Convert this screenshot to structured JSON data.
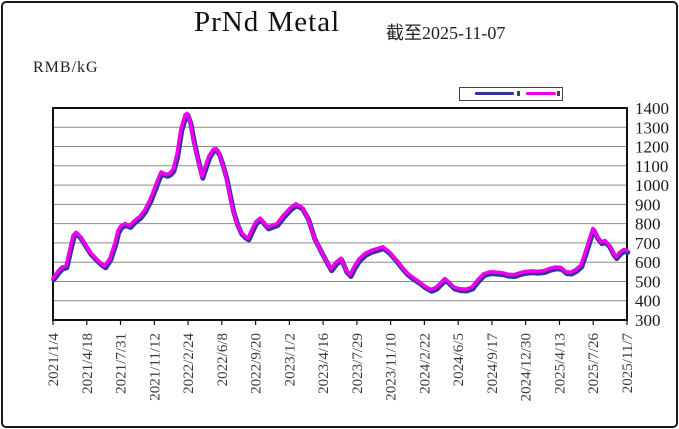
{
  "window": {
    "background": "#ffffff",
    "border_color": "#1a1a1a"
  },
  "legend": {
    "entries": [
      {
        "name": "series-1",
        "swatch_color": "#333399",
        "label": ""
      },
      {
        "name": "series-2",
        "swatch_color": "#ee00ee",
        "label": ""
      }
    ],
    "labels_visible": false
  },
  "chart_data": {
    "type": "line",
    "title": "PrNd Metal",
    "as_of": "截至2025-11-07",
    "ylabel": "RMB/kG",
    "ylim": [
      300,
      1400
    ],
    "yticks": [
      1400,
      1300,
      1200,
      1100,
      1000,
      900,
      800,
      700,
      600,
      500,
      400,
      300
    ],
    "xtick_labels": [
      "2021/1/4",
      "2021/4/18",
      "2021/7/31",
      "2021/11/12",
      "2022/2/24",
      "2022/6/8",
      "2022/9/20",
      "2023/1/2",
      "2023/4/16",
      "2023/7/29",
      "2023/11/10",
      "2024/2/22",
      "2024/6/5",
      "2024/9/17",
      "2024/12/30",
      "2025/4/13",
      "2025/7/26",
      "2025/11/7"
    ],
    "x_range": [
      "2021-01-04",
      "2025-11-07"
    ],
    "grid": "horizontal",
    "legend_position": "top-right-above-plot",
    "series": [
      {
        "name": "price-line-back",
        "color": "#333399",
        "note": "drawn beneath front line, values visually identical"
      },
      {
        "name": "price-line-front",
        "color": "#ee00ee"
      }
    ],
    "points": [
      [
        "2021-01-04",
        518
      ],
      [
        "2021-01-19",
        552
      ],
      [
        "2021-02-01",
        575
      ],
      [
        "2021-02-13",
        580
      ],
      [
        "2021-02-25",
        668
      ],
      [
        "2021-03-07",
        738
      ],
      [
        "2021-03-16",
        755
      ],
      [
        "2021-03-28",
        735
      ],
      [
        "2021-04-13",
        692
      ],
      [
        "2021-04-28",
        652
      ],
      [
        "2021-05-13",
        625
      ],
      [
        "2021-05-29",
        598
      ],
      [
        "2021-06-13",
        580
      ],
      [
        "2021-06-29",
        622
      ],
      [
        "2021-07-14",
        700
      ],
      [
        "2021-07-23",
        762
      ],
      [
        "2021-08-01",
        788
      ],
      [
        "2021-08-14",
        800
      ],
      [
        "2021-08-29",
        790
      ],
      [
        "2021-09-10",
        812
      ],
      [
        "2021-09-29",
        838
      ],
      [
        "2021-10-14",
        872
      ],
      [
        "2021-10-30",
        925
      ],
      [
        "2021-11-14",
        988
      ],
      [
        "2021-11-23",
        1030
      ],
      [
        "2021-12-03",
        1068
      ],
      [
        "2021-12-12",
        1060
      ],
      [
        "2021-12-21",
        1055
      ],
      [
        "2021-12-30",
        1062
      ],
      [
        "2022-01-09",
        1082
      ],
      [
        "2022-01-21",
        1160
      ],
      [
        "2022-02-02",
        1290
      ],
      [
        "2022-02-15",
        1365
      ],
      [
        "2022-02-21",
        1372
      ],
      [
        "2022-03-02",
        1330
      ],
      [
        "2022-03-11",
        1248
      ],
      [
        "2022-03-20",
        1175
      ],
      [
        "2022-03-30",
        1105
      ],
      [
        "2022-04-08",
        1045
      ],
      [
        "2022-04-17",
        1090
      ],
      [
        "2022-04-29",
        1150
      ],
      [
        "2022-05-12",
        1185
      ],
      [
        "2022-05-21",
        1190
      ],
      [
        "2022-05-30",
        1165
      ],
      [
        "2022-06-08",
        1120
      ],
      [
        "2022-06-21",
        1045
      ],
      [
        "2022-07-03",
        945
      ],
      [
        "2022-07-12",
        870
      ],
      [
        "2022-07-25",
        800
      ],
      [
        "2022-08-06",
        755
      ],
      [
        "2022-08-18",
        735
      ],
      [
        "2022-08-28",
        725
      ],
      [
        "2022-09-09",
        770
      ],
      [
        "2022-09-21",
        810
      ],
      [
        "2022-10-04",
        828
      ],
      [
        "2022-10-16",
        805
      ],
      [
        "2022-10-28",
        782
      ],
      [
        "2022-11-09",
        790
      ],
      [
        "2022-11-25",
        800
      ],
      [
        "2022-12-13",
        840
      ],
      [
        "2023-01-04",
        880
      ],
      [
        "2023-01-22",
        903
      ],
      [
        "2023-02-10",
        885
      ],
      [
        "2023-02-28",
        830
      ],
      [
        "2023-03-19",
        730
      ],
      [
        "2023-04-06",
        670
      ],
      [
        "2023-04-25",
        610
      ],
      [
        "2023-05-10",
        565
      ],
      [
        "2023-05-26",
        600
      ],
      [
        "2023-06-10",
        620
      ],
      [
        "2023-06-25",
        560
      ],
      [
        "2023-07-08",
        535
      ],
      [
        "2023-07-20",
        575
      ],
      [
        "2023-08-04",
        615
      ],
      [
        "2023-08-23",
        645
      ],
      [
        "2023-09-10",
        660
      ],
      [
        "2023-09-29",
        670
      ],
      [
        "2023-10-17",
        680
      ],
      [
        "2023-11-05",
        655
      ],
      [
        "2023-11-23",
        620
      ],
      [
        "2023-12-12",
        580
      ],
      [
        "2023-12-30",
        545
      ],
      [
        "2024-01-18",
        520
      ],
      [
        "2024-02-05",
        500
      ],
      [
        "2024-02-24",
        475
      ],
      [
        "2024-03-13",
        458
      ],
      [
        "2024-03-28",
        468
      ],
      [
        "2024-04-13",
        495
      ],
      [
        "2024-04-25",
        515
      ],
      [
        "2024-05-08",
        495
      ],
      [
        "2024-05-23",
        470
      ],
      [
        "2024-06-10",
        462
      ],
      [
        "2024-06-29",
        460
      ],
      [
        "2024-07-17",
        470
      ],
      [
        "2024-08-05",
        510
      ],
      [
        "2024-08-23",
        540
      ],
      [
        "2024-09-11",
        550
      ],
      [
        "2024-09-29",
        548
      ],
      [
        "2024-10-18",
        545
      ],
      [
        "2024-11-05",
        537
      ],
      [
        "2024-11-24",
        535
      ],
      [
        "2024-12-12",
        545
      ],
      [
        "2024-12-31",
        552
      ],
      [
        "2025-01-18",
        555
      ],
      [
        "2025-02-06",
        552
      ],
      [
        "2025-02-24",
        556
      ],
      [
        "2025-03-15",
        568
      ],
      [
        "2025-04-02",
        575
      ],
      [
        "2025-04-18",
        572
      ],
      [
        "2025-05-03",
        550
      ],
      [
        "2025-05-18",
        548
      ],
      [
        "2025-06-03",
        562
      ],
      [
        "2025-06-18",
        585
      ],
      [
        "2025-07-03",
        660
      ],
      [
        "2025-07-16",
        730
      ],
      [
        "2025-07-25",
        775
      ],
      [
        "2025-08-06",
        735
      ],
      [
        "2025-08-19",
        705
      ],
      [
        "2025-08-31",
        712
      ],
      [
        "2025-09-12",
        690
      ],
      [
        "2025-09-25",
        648
      ],
      [
        "2025-10-04",
        628
      ],
      [
        "2025-10-16",
        652
      ],
      [
        "2025-10-28",
        666
      ],
      [
        "2025-11-07",
        660
      ]
    ]
  }
}
